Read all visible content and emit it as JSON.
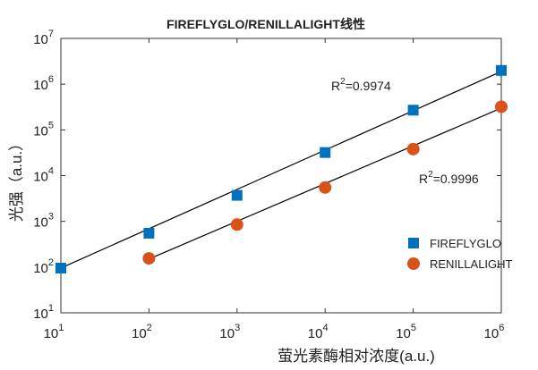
{
  "chart_data": {
    "type": "scatter",
    "title": "FIREFLYGLO/RENILLALIGHT线性",
    "xlabel": "萤光素酶相对浓度(a.u.)",
    "ylabel": "光强（a.u.）",
    "log_x": true,
    "log_y": true,
    "xlim": [
      10,
      1000000
    ],
    "ylim": [
      10,
      10000000
    ],
    "xticks": [
      {
        "value": 10,
        "label": "10",
        "power": "1"
      },
      {
        "value": 100,
        "label": "10",
        "power": "2"
      },
      {
        "value": 1000,
        "label": "10",
        "power": "3"
      },
      {
        "value": 10000,
        "label": "10",
        "power": "4"
      },
      {
        "value": 100000,
        "label": "10",
        "power": "5"
      },
      {
        "value": 1000000,
        "label": "10",
        "power": "6"
      }
    ],
    "yticks": [
      {
        "value": 10,
        "label": "10",
        "power": "1"
      },
      {
        "value": 100,
        "label": "10",
        "power": "2"
      },
      {
        "value": 1000,
        "label": "10",
        "power": "3"
      },
      {
        "value": 10000,
        "label": "10",
        "power": "4"
      },
      {
        "value": 100000,
        "label": "10",
        "power": "5"
      },
      {
        "value": 1000000,
        "label": "10",
        "power": "6"
      },
      {
        "value": 10000000,
        "label": "10",
        "power": "7"
      }
    ],
    "legend": "lower right",
    "series": [
      {
        "name": "FIREFLYGLO",
        "color": "#0072bd",
        "marker": "square",
        "x": [
          10,
          100,
          1000,
          10000,
          100000,
          1000000
        ],
        "values": [
          95,
          550,
          3700,
          32000,
          270000,
          2000000
        ],
        "fit": {
          "color": "#000000",
          "x": [
            10,
            1000000
          ],
          "values": [
            95,
            1900000
          ]
        }
      },
      {
        "name": "RENILLALIGHT",
        "color": "#d95319",
        "marker": "circle",
        "x": [
          100,
          1000,
          10000,
          100000,
          1000000
        ],
        "values": [
          155,
          850,
          5500,
          38000,
          320000
        ],
        "fit": {
          "color": "#000000",
          "x": [
            100,
            1000000
          ],
          "values": [
            150,
            300000
          ]
        }
      }
    ],
    "annotations": [
      {
        "text": "R",
        "power": "2",
        "rest": "=0.9974"
      },
      {
        "text": "R",
        "power": "2",
        "rest": "=0.9996"
      }
    ]
  }
}
